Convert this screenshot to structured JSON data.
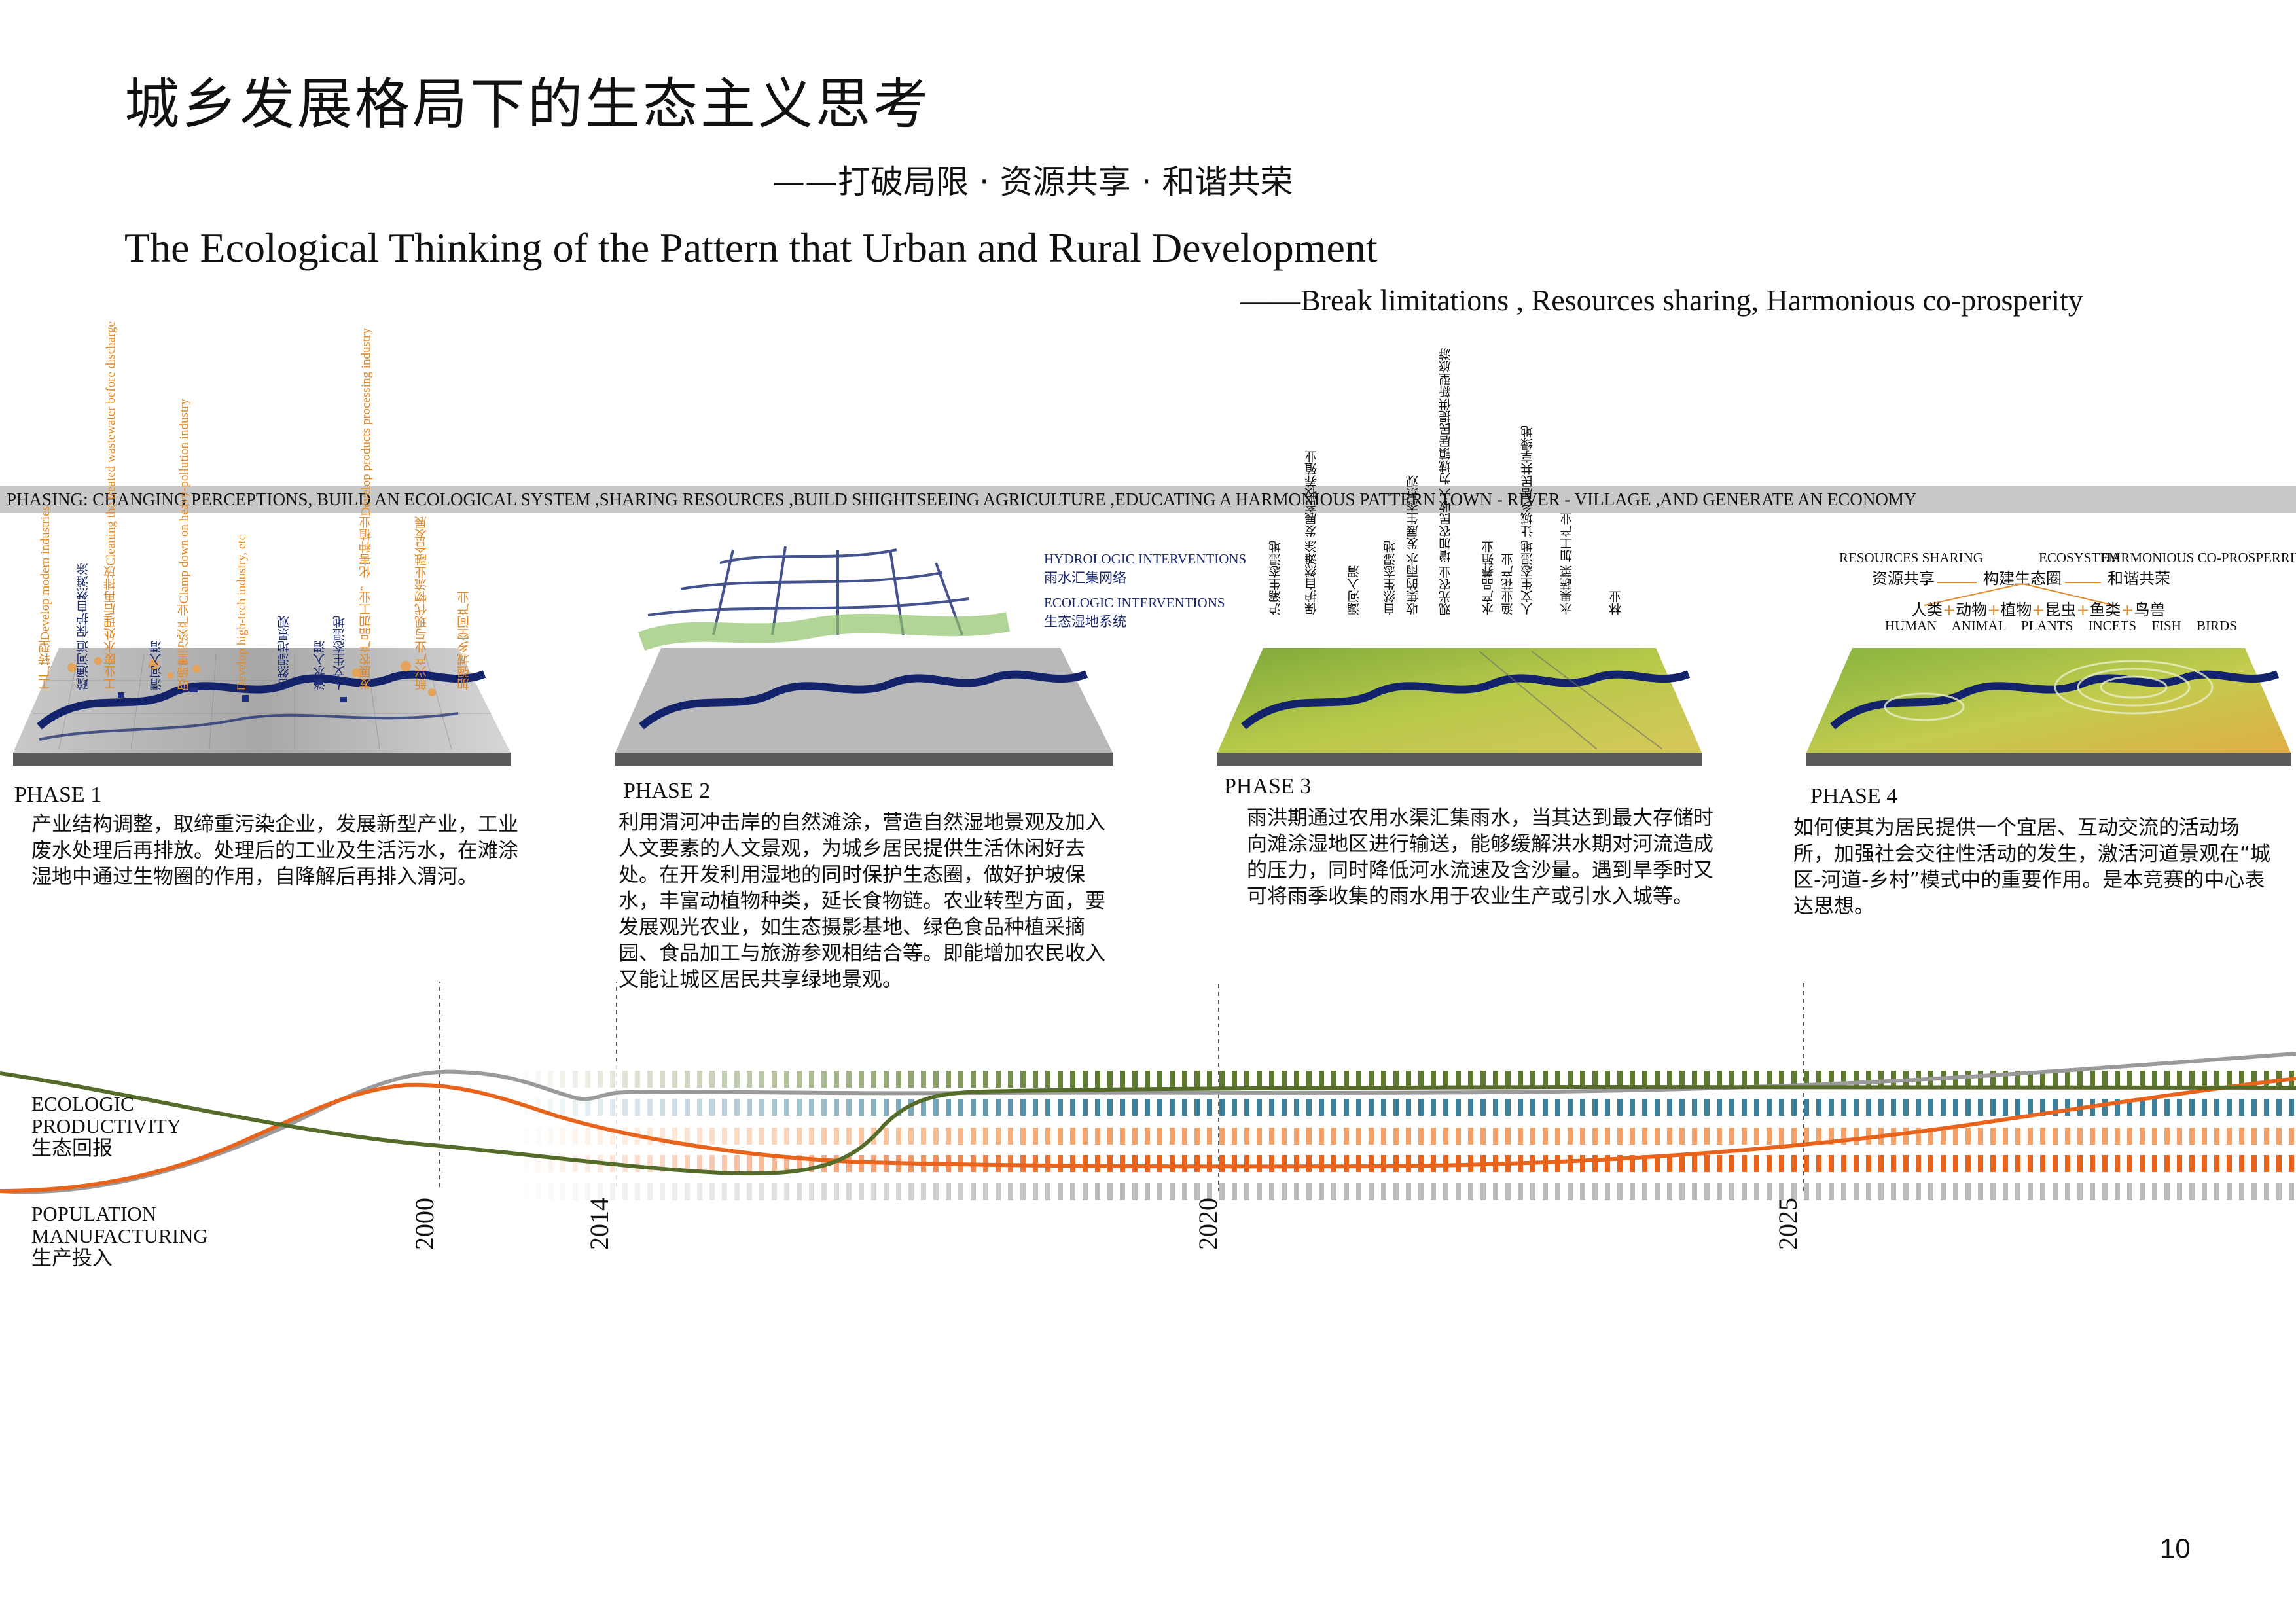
{
  "title_cn": "城乡发展格局下的生态主义思考",
  "subtitle_cn": "——打破局限 · 资源共享 · 和谐共荣",
  "title_en": "The Ecological Thinking of the Pattern that Urban and Rural Development",
  "subtitle_en": "——Break limitations , Resources sharing, Harmonious co-prosperity",
  "banner": "PHASING: CHANGING PERCEPTIONS, BUILD AN ECOLOGICAL SYSTEM ,SHARING RESOURCES ,BUILD SHIGHTSEEING AGRICULTURE ,EDUCATING A HARMONIOUS PATTERN TOWN - RIVER - VILLAGE ,AND GENERATE AN ECONOMY",
  "phases": [
    {
      "label": "PHASE 1",
      "text": "产业结构调整，取缔重污染企业，发展新型产业，工业废水处理后再排放。处理后的工业及生活污水，在滩涂湿地中通过生物圈的作用，自降解后再排入渭河。",
      "annotations": [
        {
          "text": "工厂转型Develop modern industries",
          "color": "#e08a2a"
        },
        {
          "text": "疏通河道 保护自然滩涂",
          "color": "#1c2a6e"
        },
        {
          "text": "工业废水处理后再排放Cleaning the treated wastewater before discharge",
          "color": "#e08a2a"
        },
        {
          "text": "渭河入渭",
          "color": "#1c2a6e"
        },
        {
          "text": "取缔重污染产业Clamp down on heavy-pollution industry",
          "color": "#e08a2a"
        },
        {
          "text": "Develop high-tech industry, etc",
          "color": "#e08a2a"
        },
        {
          "text": "自然湿地景观",
          "color": "#1c2a6e"
        },
        {
          "text": "淡水入渭",
          "color": "#1c2a6e"
        },
        {
          "text": "人文生态湿地",
          "color": "#1c2a6e"
        },
        {
          "text": "发展农产品加工业，化害种植业Develop products processing industry",
          "color": "#e08a2a"
        },
        {
          "text": "新兴产业与现代物流业融合发展",
          "color": "#e08a2a"
        },
        {
          "text": "加强城乡空间产业",
          "color": "#e08a2a"
        }
      ]
    },
    {
      "label": "PHASE 2",
      "text": "利用渭河冲击岸的自然滩涂，营造自然湿地景观及加入人文要素的人文景观，为城乡居民提供生活休闲好去处。在开发利用湿地的同时保护生态圈，做好护坡保水，丰富动植物种类，延长食物链。农业转型方面，要发展观光农业，如生态摄影基地、绿色食品种植采摘园、食品加工与旅游参观相结合等。即能增加农民收入又能让城区居民共享绿地景观。",
      "labels": [
        {
          "en": "HYDROLOGIC INTERVENTIONS",
          "cn": "雨水汇集网络"
        },
        {
          "en": "ECOLOGIC INTERVENTIONS",
          "cn": "生态湿地系统"
        }
      ]
    },
    {
      "label": "PHASE 3",
      "text": "雨洪期通过农用水渠汇集雨水，当其达到最大存储时向滩涂湿地区进行输送，能够缓解洪水期对河流造成的压力，同时降低河水流速及含沙量。遇到旱季时又可将雨季收集的雨水用于农业生产或引水入城等。",
      "annotations": [
        {
          "text": "沪灞生态湿地"
        },
        {
          "text": "保护自然滩涂 发展畜牧养殖业"
        },
        {
          "text": "灞河入渭"
        },
        {
          "text": "自然生态湿地"
        },
        {
          "text": "收集的雨水 发展生态景观"
        },
        {
          "text": "观光农业 增加农民收入 为城镇居民提供新型旅游"
        },
        {
          "text": "水产品养殖业"
        },
        {
          "text": "渔业花产业"
        },
        {
          "text": "人文生态湿地 让城乡居民共享绿地"
        },
        {
          "text": "水果蔬菜 加工产业"
        },
        {
          "text": "林业"
        }
      ]
    },
    {
      "label": "PHASE 4",
      "text": "如何使其为居民提供一个宜居、互动交流的活动场所，加强社会交往性活动的发生，激活河道景观在“城区-河道-乡村”模式中的重要作用。是本竞赛的中心表达思想。",
      "concept": {
        "en": [
          "RESOURCES SHARING",
          "ECOSYSTEM",
          "HARMONIOUS CO-PROSPERRITY"
        ],
        "cn": [
          "资源共享",
          "构建生态圈",
          "和谐共荣"
        ],
        "chain_cn": [
          "人类",
          "动物",
          "植物",
          "昆虫",
          "鱼类",
          "鸟兽"
        ],
        "chain_en": [
          "HUMAN",
          "ANIMAL",
          "PLANTS",
          "INCETS",
          "FISH",
          "BIRDS"
        ]
      }
    }
  ],
  "chart_data": {
    "type": "line",
    "x_markers": [
      "2000",
      "2014",
      "2020",
      "2025"
    ],
    "axis_labels": {
      "ecologic": [
        "ECOLOGIC",
        "PRODUCTIVITY",
        "生态回报"
      ],
      "population": [
        "POPULATION",
        "MANUFACTURING",
        "生产投入"
      ]
    },
    "series": [
      {
        "color": "#9a9a9a"
      },
      {
        "color": "#e8641c"
      },
      {
        "color": "#556b2a"
      }
    ],
    "dashed_bands": [
      "#5e7a2e",
      "#3f7f9a",
      "#f2a268",
      "#e8641c",
      "#bcbcbc"
    ]
  },
  "page_number": "10"
}
